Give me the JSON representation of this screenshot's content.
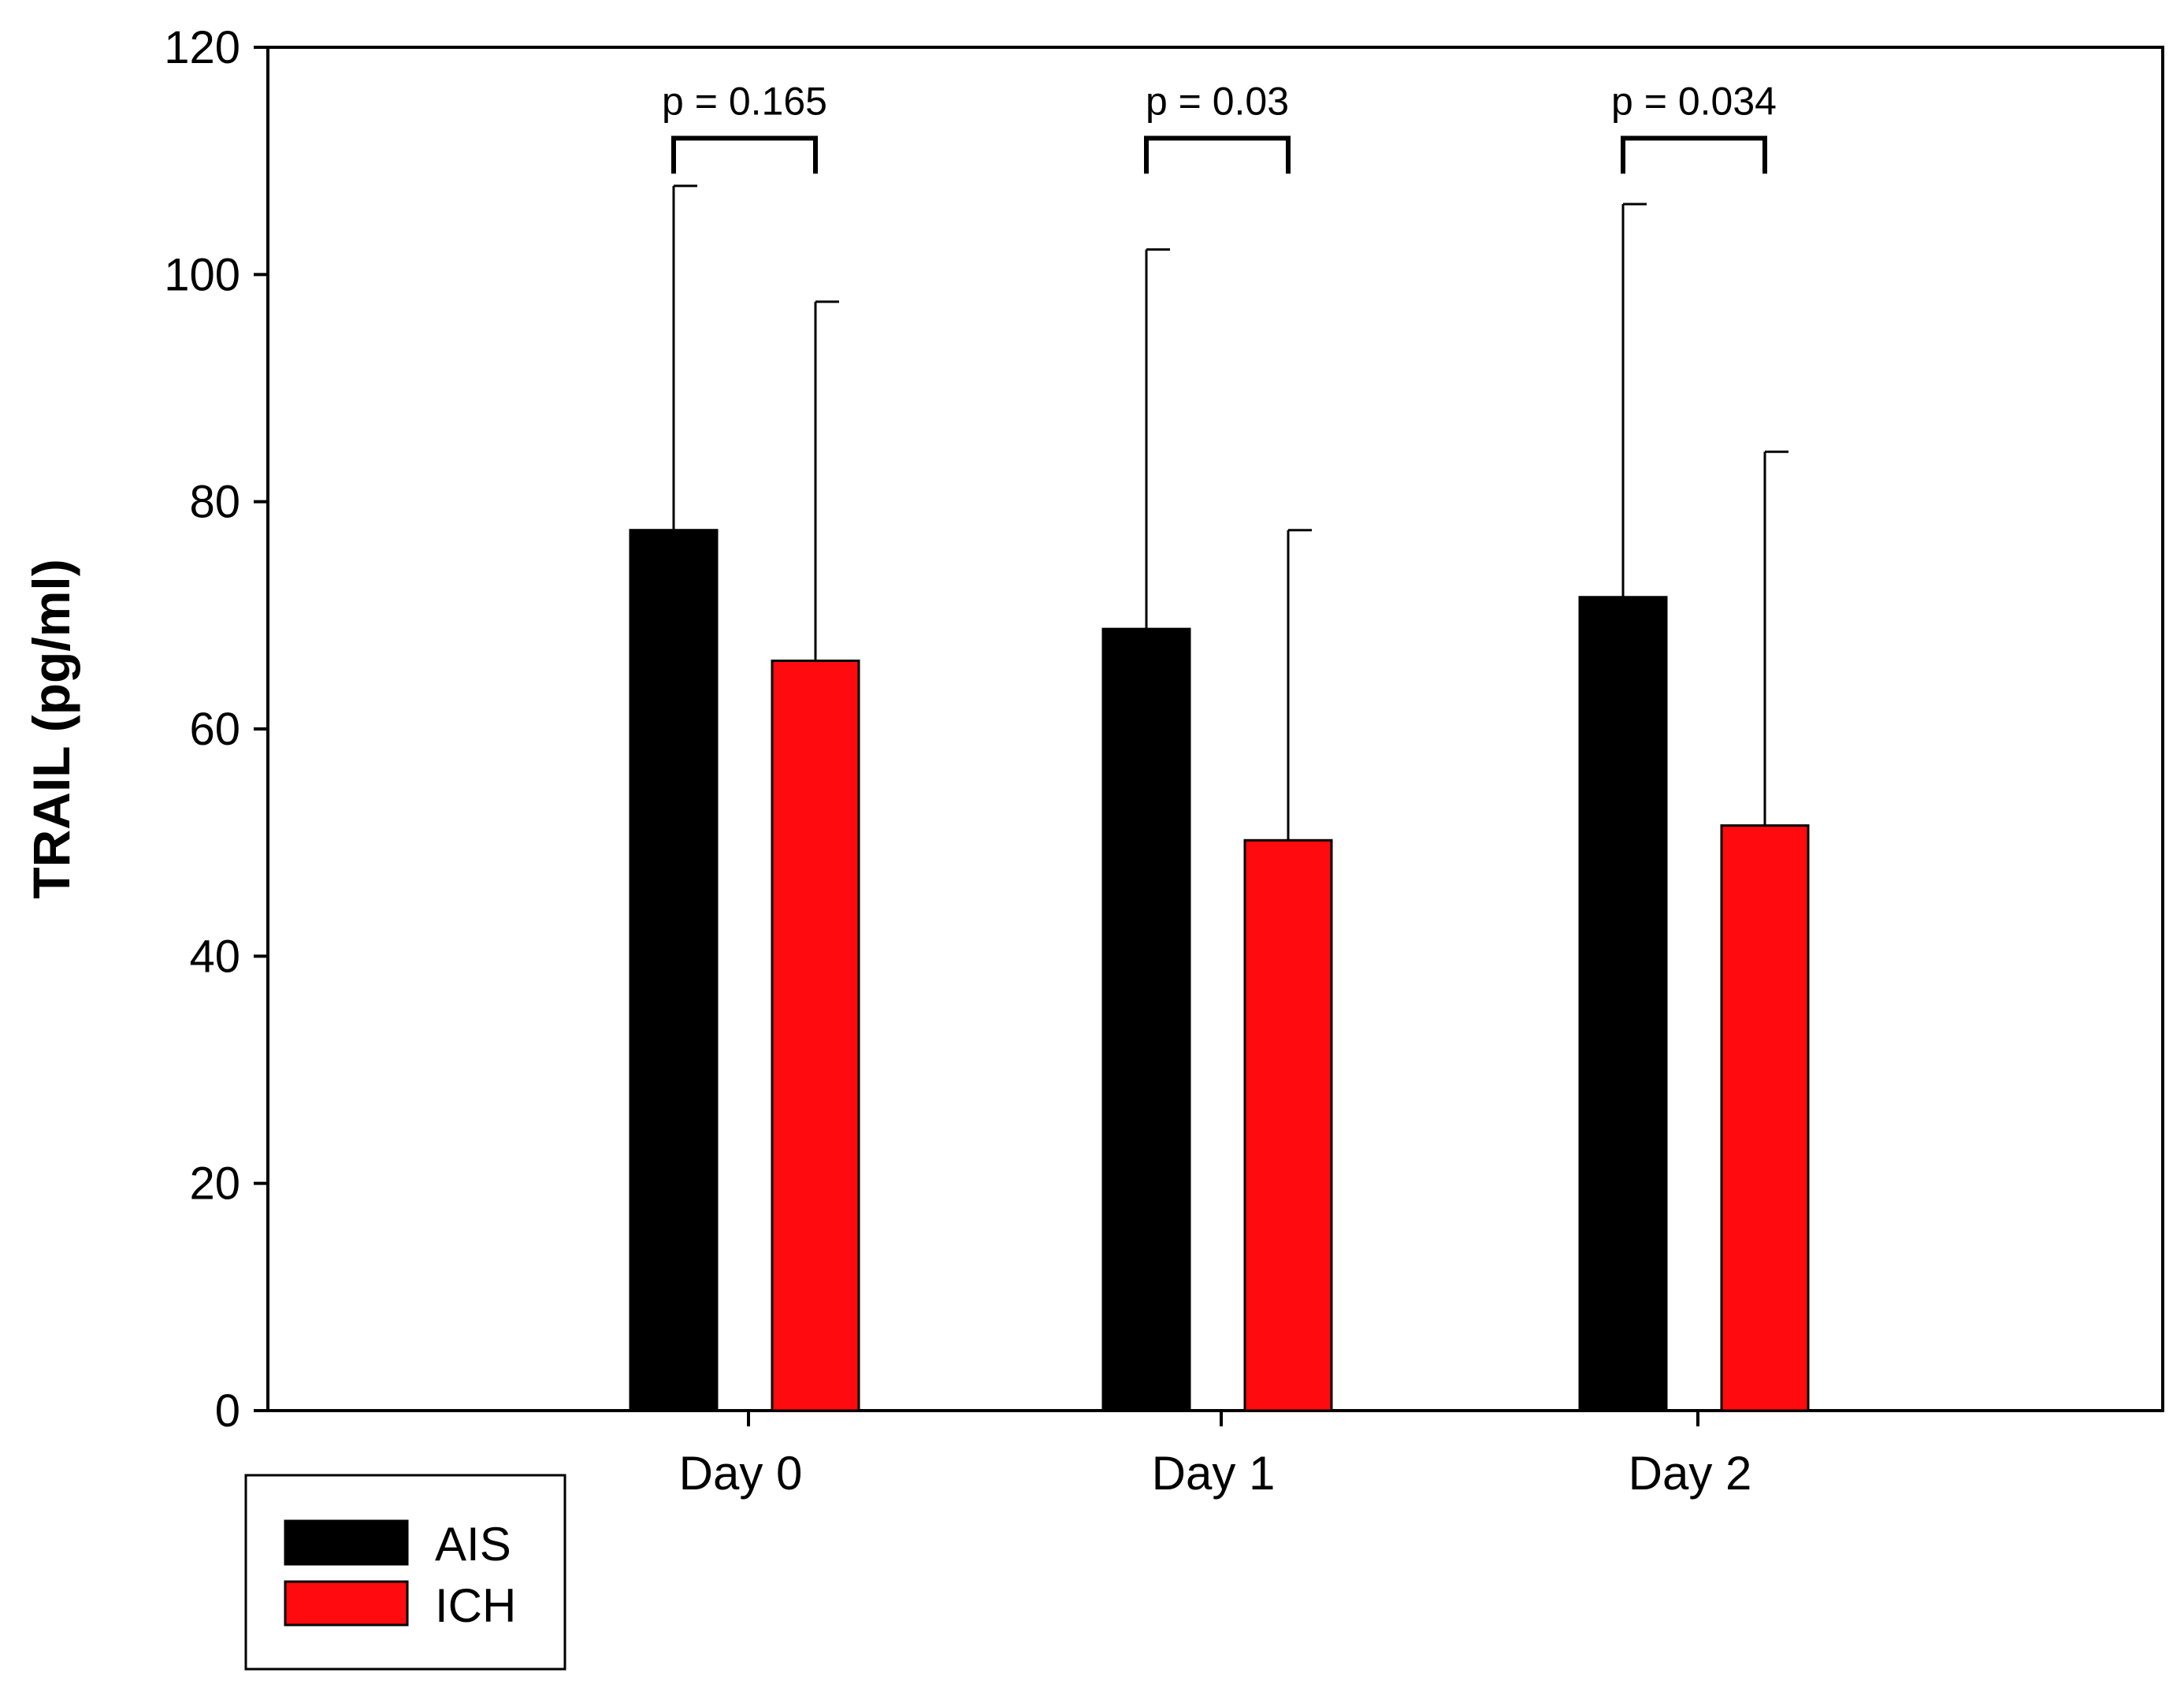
{
  "chart_data": {
    "type": "bar",
    "title": "",
    "xlabel": "",
    "ylabel": "TRAIL (pg/ml)",
    "ylim": [
      0,
      120
    ],
    "yticks": [
      0,
      20,
      40,
      60,
      80,
      100,
      120
    ],
    "grid": false,
    "legend_position": "bottom-left",
    "categories": [
      "Day 0",
      "Day 1",
      "Day 2"
    ],
    "series": [
      {
        "name": "AIS",
        "color": "#000000",
        "values": [
          77.5,
          68.8,
          71.6
        ],
        "error_upper": [
          30.3,
          33.4,
          34.6
        ]
      },
      {
        "name": "ICH",
        "color": "#ff0a0f",
        "values": [
          66.0,
          50.2,
          51.5
        ],
        "error_upper": [
          31.6,
          27.3,
          32.9
        ]
      }
    ],
    "annotations": [
      {
        "label": "p = 0.165",
        "category": "Day 0",
        "bracket_y": 112
      },
      {
        "label": "p = 0.03",
        "category": "Day 1",
        "bracket_y": 112
      },
      {
        "label": "p = 0.034",
        "category": "Day 2",
        "bracket_y": 112
      }
    ]
  }
}
